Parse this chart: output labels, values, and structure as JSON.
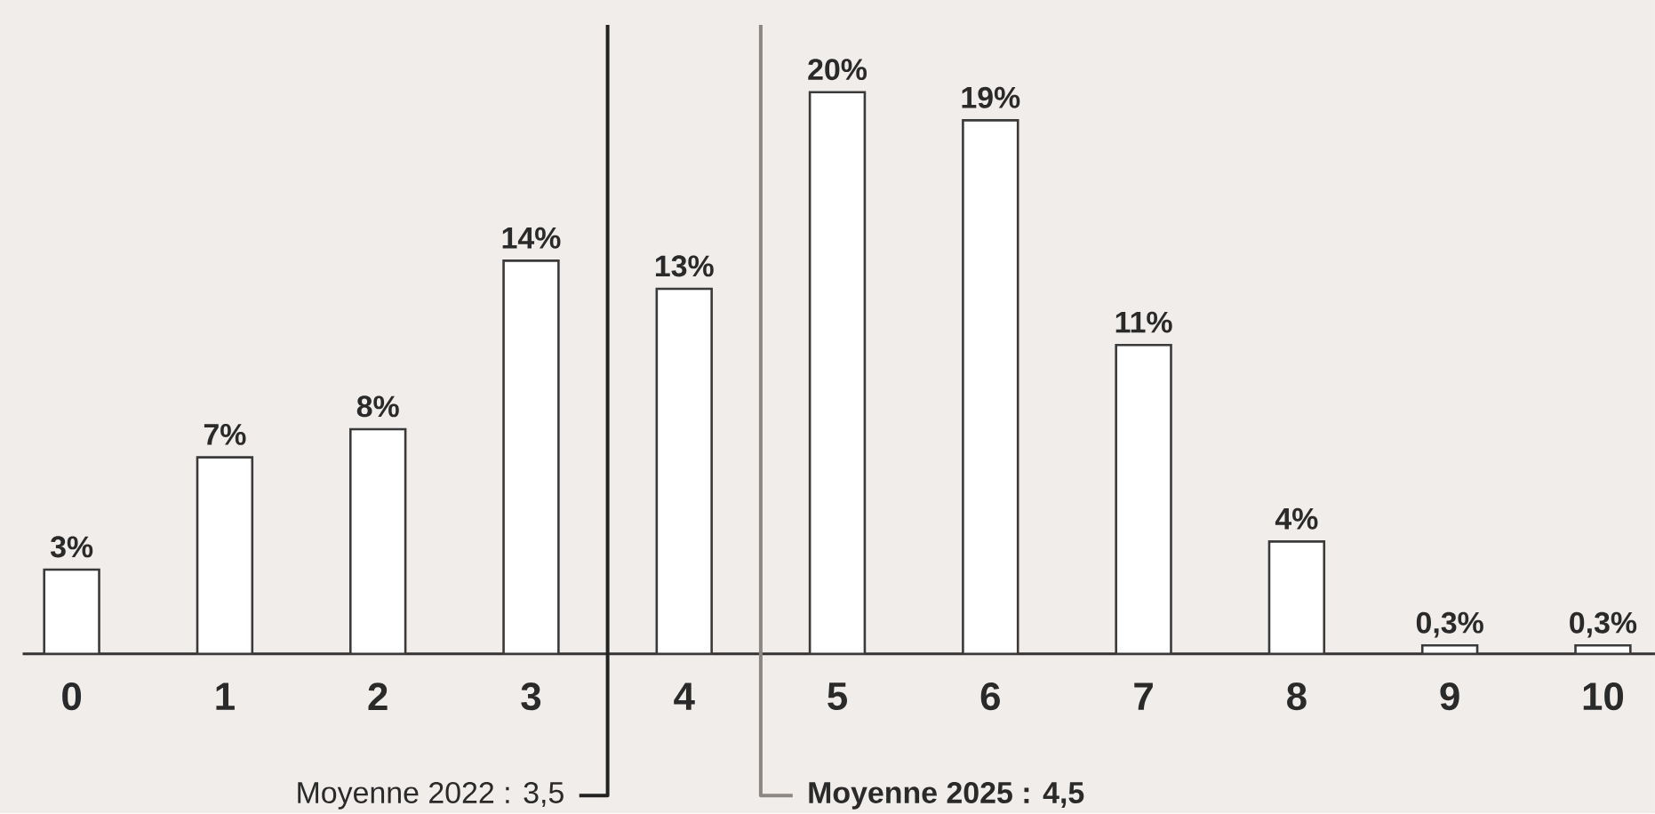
{
  "chart_data": {
    "type": "bar",
    "x": [
      0,
      1,
      2,
      3,
      4,
      5,
      6,
      7,
      8,
      9,
      10
    ],
    "values": [
      3,
      7,
      8,
      14,
      13,
      20,
      19,
      11,
      4,
      0.3,
      0.3
    ],
    "xlim": [
      -0.32,
      10.34
    ],
    "xticks": [
      0,
      1,
      2,
      3,
      4,
      5,
      6,
      7,
      8,
      9,
      10
    ],
    "color": "#ffffff",
    "value_labels": [
      "3%",
      "7%",
      "8%",
      "14%",
      "13%",
      "20%",
      "19%",
      "11%",
      "4%",
      "0,3%",
      "0,3%"
    ],
    "ref_lines": [
      {
        "axis": "x",
        "value": 3.5,
        "label": "Moyenne 2022 : 3,5",
        "color": "#222222"
      },
      {
        "axis": "x",
        "value": 4.5,
        "label": "Moyenne 2025 : 4,5",
        "color": "#8c8783"
      }
    ]
  }
}
